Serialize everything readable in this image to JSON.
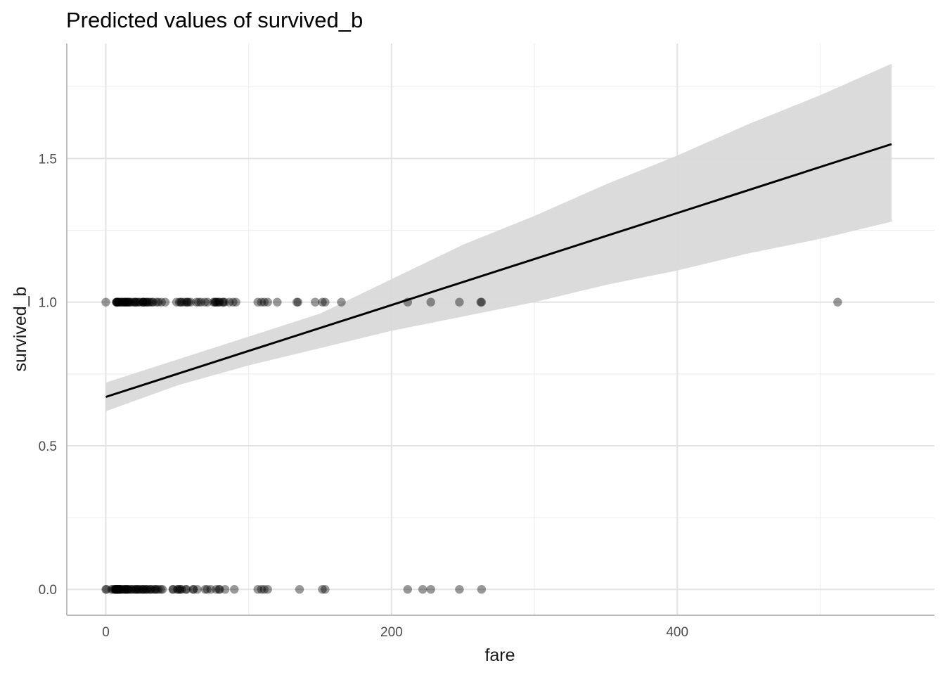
{
  "chart_data": {
    "type": "scatter",
    "title": "Predicted values of survived_b",
    "xlabel": "fare",
    "ylabel": "survived_b",
    "xlim": [
      -27.3,
      580
    ],
    "ylim": [
      -0.09,
      1.9
    ],
    "x_ticks": [
      0,
      200,
      400
    ],
    "y_ticks": [
      0.0,
      0.5,
      1.0,
      1.5
    ],
    "x_tick_labels": [
      "0",
      "200",
      "400"
    ],
    "y_tick_labels": [
      "0.0",
      "0.5",
      "1.0",
      "1.5"
    ],
    "x_minor_ticks": [
      100,
      300,
      500
    ],
    "y_minor_ticks": [
      0.25,
      0.75,
      1.25,
      1.75
    ],
    "grid": true,
    "points_survived_1": {
      "y": 1,
      "x": [
        0,
        7.3,
        7.6,
        7.8,
        7.9,
        8.1,
        8.5,
        9.2,
        9.5,
        10.5,
        11.1,
        11.5,
        12.5,
        13,
        13.4,
        13.8,
        14.5,
        15.2,
        15.5,
        16,
        16.7,
        17.4,
        18.8,
        20.2,
        20.5,
        21,
        22,
        23,
        24,
        25.9,
        26,
        26.3,
        26.5,
        27.7,
        28.7,
        29,
        30,
        31,
        32.5,
        33,
        35.5,
        36.8,
        39,
        41.6,
        49.5,
        51.5,
        52.5,
        53.1,
        55,
        56.5,
        57,
        57.9,
        59.4,
        63.4,
        65,
        66.6,
        69.3,
        71.3,
        75.3,
        76.3,
        76.7,
        77.3,
        78.3,
        79.2,
        79.7,
        81.9,
        82.2,
        83.2,
        86.5,
        89.1,
        91.1,
        106.4,
        108.9,
        110.9,
        113.3,
        120,
        133.7,
        134.5,
        146.5,
        151.6,
        153.5,
        164.9,
        211.3,
        227.5,
        247.5,
        262.4,
        263,
        512.3
      ]
    },
    "points_survived_0": {
      "y": 0,
      "x": [
        0,
        0.5,
        4,
        5,
        6.2,
        6.4,
        6.9,
        7.1,
        7.2,
        7.5,
        7.7,
        7.9,
        8.1,
        8.4,
        8.7,
        9,
        9.4,
        9.8,
        10.2,
        10.5,
        11.2,
        12.3,
        12.9,
        13.5,
        14.1,
        14.5,
        15.1,
        15.7,
        16.1,
        17.8,
        18,
        19.3,
        20.5,
        21.1,
        21.7,
        22.5,
        23.3,
        24.2,
        25.5,
        26,
        26.6,
        27.7,
        28.5,
        29.1,
        30.7,
        31.3,
        32.3,
        34,
        34.7,
        35.5,
        36.8,
        38.5,
        39.7,
        46.9,
        47.1,
        50,
        50.5,
        51.9,
        52,
        53.1,
        55.9,
        56.5,
        61.2,
        61.4,
        64,
        69.5,
        71,
        73.5,
        77.3,
        79.2,
        79.7,
        83.5,
        90,
        106.4,
        108.9,
        110.9,
        113.3,
        135.6,
        151.6,
        153.5,
        211.3,
        221.8,
        227.5,
        247.5,
        263
      ]
    },
    "fit_line": {
      "x": [
        0,
        100,
        200,
        300,
        400,
        512.3,
        550
      ],
      "y": [
        0.67,
        0.83,
        0.99,
        1.15,
        1.31,
        1.49,
        1.55
      ]
    },
    "ci_band": {
      "x": [
        0,
        50,
        100,
        150,
        200,
        250,
        300,
        350,
        400,
        450,
        500,
        550
      ],
      "lower": [
        0.62,
        0.71,
        0.78,
        0.84,
        0.9,
        0.95,
        1.0,
        1.06,
        1.11,
        1.17,
        1.22,
        1.28
      ],
      "upper": [
        0.72,
        0.8,
        0.88,
        0.96,
        1.08,
        1.2,
        1.3,
        1.41,
        1.51,
        1.62,
        1.72,
        1.83
      ]
    },
    "colors": {
      "points": "#000000",
      "line": "#000000",
      "band": "#d9d9d9",
      "grid_major": "#e3e3e3",
      "grid_minor": "#efefef",
      "axis": "#bdbdbd"
    }
  }
}
